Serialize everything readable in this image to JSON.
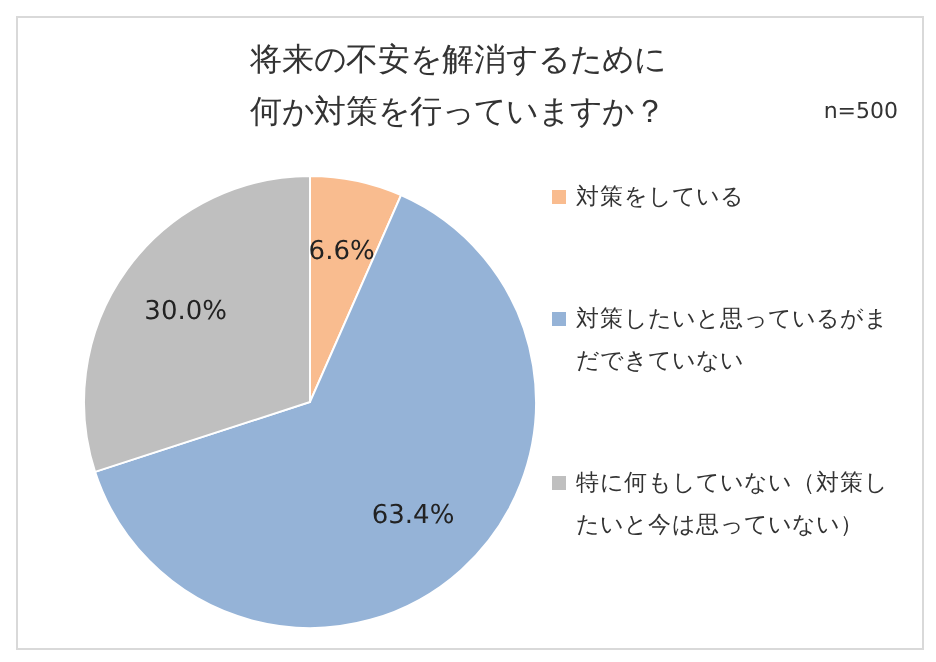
{
  "chart_data": {
    "type": "pie",
    "title": "将来の不安を解消するために何か対策を行っていますか？",
    "annotations": [
      "n=500"
    ],
    "categories": [
      "対策をしている",
      "対策したいと思っているがまだできていない",
      "特に何もしていない（対策したいと今は思っていない）"
    ],
    "values": [
      6.6,
      63.4,
      30.0
    ],
    "colors": [
      "#f9bc8f",
      "#95b3d7",
      "#bfbfbf"
    ],
    "value_labels": [
      "6.6%",
      "63.4%",
      "30.0%"
    ],
    "legend": "right"
  }
}
